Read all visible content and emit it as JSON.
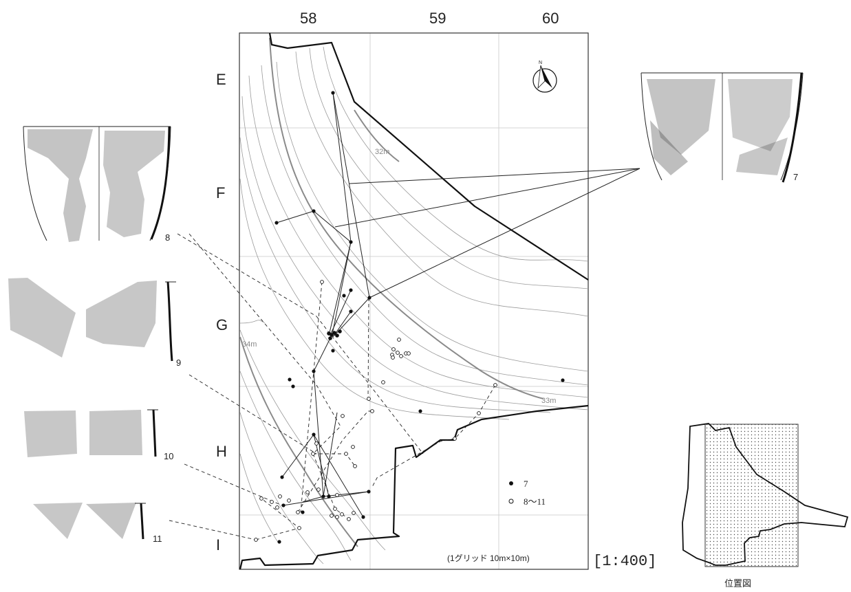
{
  "grid_columns": [
    "58",
    "59",
    "60"
  ],
  "grid_rows": [
    "E",
    "F",
    "G",
    "H",
    "I"
  ],
  "contour_labels": [
    "32m",
    "33m",
    "34m"
  ],
  "legend": [
    {
      "symbol": "●",
      "label": "7"
    },
    {
      "symbol": "○",
      "label": "8〜11"
    }
  ],
  "grid_note": "(1グリッド 10m×10m)",
  "scale": "[1:400]",
  "location_map_label": "位置図",
  "artifact_numbers": [
    "7",
    "8",
    "9",
    "10",
    "11"
  ],
  "north_arrow_letter": "N",
  "colors": {
    "ink": "#111111",
    "contour": "#9a9a9a",
    "grid": "#c8c8c8"
  }
}
